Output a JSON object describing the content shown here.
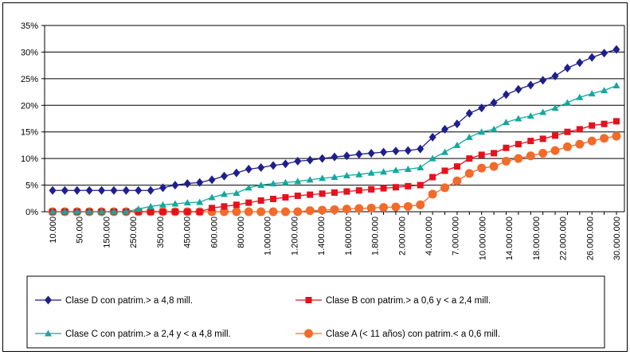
{
  "chart_data": {
    "type": "line",
    "title": "",
    "xlabel": "",
    "ylabel": "",
    "ylim": [
      0,
      0.35
    ],
    "y_tick_labels": [
      "0%",
      "5%",
      "10%",
      "15%",
      "20%",
      "25%",
      "30%",
      "35%"
    ],
    "x_tick_labels": [
      "10.000",
      "50.000",
      "150.000",
      "250.000",
      "350.000",
      "450.000",
      "600.000",
      "800.000",
      "1.000.000",
      "1.200.000",
      "1.400.000",
      "1.600.000",
      "1.800.000",
      "2.000.000",
      "4.000.000",
      "7.000.000",
      "10.000.000",
      "14.000.000",
      "18.000.000",
      "22.000.000",
      "26.000.000",
      "30.000.000"
    ],
    "grid": "horizontal",
    "legend_position": "bottom",
    "series": [
      {
        "name": "Clase D con patrim.> a 4,8 mill.",
        "color": "#1f1f8c",
        "marker": "diamond",
        "values": [
          0.04,
          0.04,
          0.04,
          0.04,
          0.04,
          0.04,
          0.04,
          0.04,
          0.04,
          0.045,
          0.05,
          0.053,
          0.055,
          0.06,
          0.067,
          0.073,
          0.08,
          0.083,
          0.087,
          0.09,
          0.095,
          0.097,
          0.1,
          0.103,
          0.105,
          0.108,
          0.11,
          0.112,
          0.114,
          0.115,
          0.118,
          0.14,
          0.155,
          0.165,
          0.185,
          0.195,
          0.205,
          0.22,
          0.23,
          0.238,
          0.247,
          0.255,
          0.27,
          0.28,
          0.29,
          0.298,
          0.305
        ]
      },
      {
        "name": "Clase B con patrim.> a 0,6 y < a 2,4 mill.",
        "color": "#e3121e",
        "marker": "square",
        "values": [
          0.0,
          0.0,
          0.0,
          0.0,
          0.0,
          0.0,
          0.0,
          0.0,
          0.0,
          0.0,
          0.0,
          0.0,
          0.0,
          0.007,
          0.01,
          0.013,
          0.017,
          0.021,
          0.024,
          0.027,
          0.03,
          0.032,
          0.034,
          0.036,
          0.038,
          0.04,
          0.042,
          0.044,
          0.046,
          0.048,
          0.05,
          0.065,
          0.077,
          0.085,
          0.1,
          0.107,
          0.11,
          0.12,
          0.127,
          0.133,
          0.137,
          0.143,
          0.15,
          0.155,
          0.162,
          0.165,
          0.17
        ]
      },
      {
        "name": "Clase C con patrim.> a 2,4 y < a 4,8 mill.",
        "color": "#13a89e",
        "marker": "triangle",
        "values": [
          0.0,
          0.0,
          0.0,
          0.0,
          0.0,
          0.0,
          0.0,
          0.005,
          0.01,
          0.013,
          0.015,
          0.017,
          0.018,
          0.027,
          0.033,
          0.035,
          0.045,
          0.05,
          0.053,
          0.055,
          0.057,
          0.06,
          0.063,
          0.065,
          0.068,
          0.07,
          0.073,
          0.075,
          0.078,
          0.08,
          0.083,
          0.1,
          0.112,
          0.125,
          0.14,
          0.15,
          0.155,
          0.168,
          0.175,
          0.18,
          0.187,
          0.195,
          0.205,
          0.215,
          0.222,
          0.228,
          0.237
        ]
      },
      {
        "name": "Clase A (< 11 años) con patrim.< a 0,6 mill.",
        "color": "#f26b2a",
        "marker": "circle",
        "values": [
          0.0,
          0.0,
          0.0,
          0.0,
          0.0,
          0.0,
          0.0,
          0.0,
          0.0,
          0.0,
          0.0,
          0.0,
          0.0,
          0.0,
          0.0,
          0.0,
          0.0,
          0.0,
          0.0,
          0.0,
          0.0,
          0.002,
          0.003,
          0.004,
          0.005,
          0.006,
          0.007,
          0.008,
          0.009,
          0.01,
          0.013,
          0.033,
          0.045,
          0.058,
          0.072,
          0.082,
          0.085,
          0.095,
          0.1,
          0.105,
          0.11,
          0.115,
          0.122,
          0.127,
          0.133,
          0.138,
          0.142
        ]
      }
    ]
  }
}
